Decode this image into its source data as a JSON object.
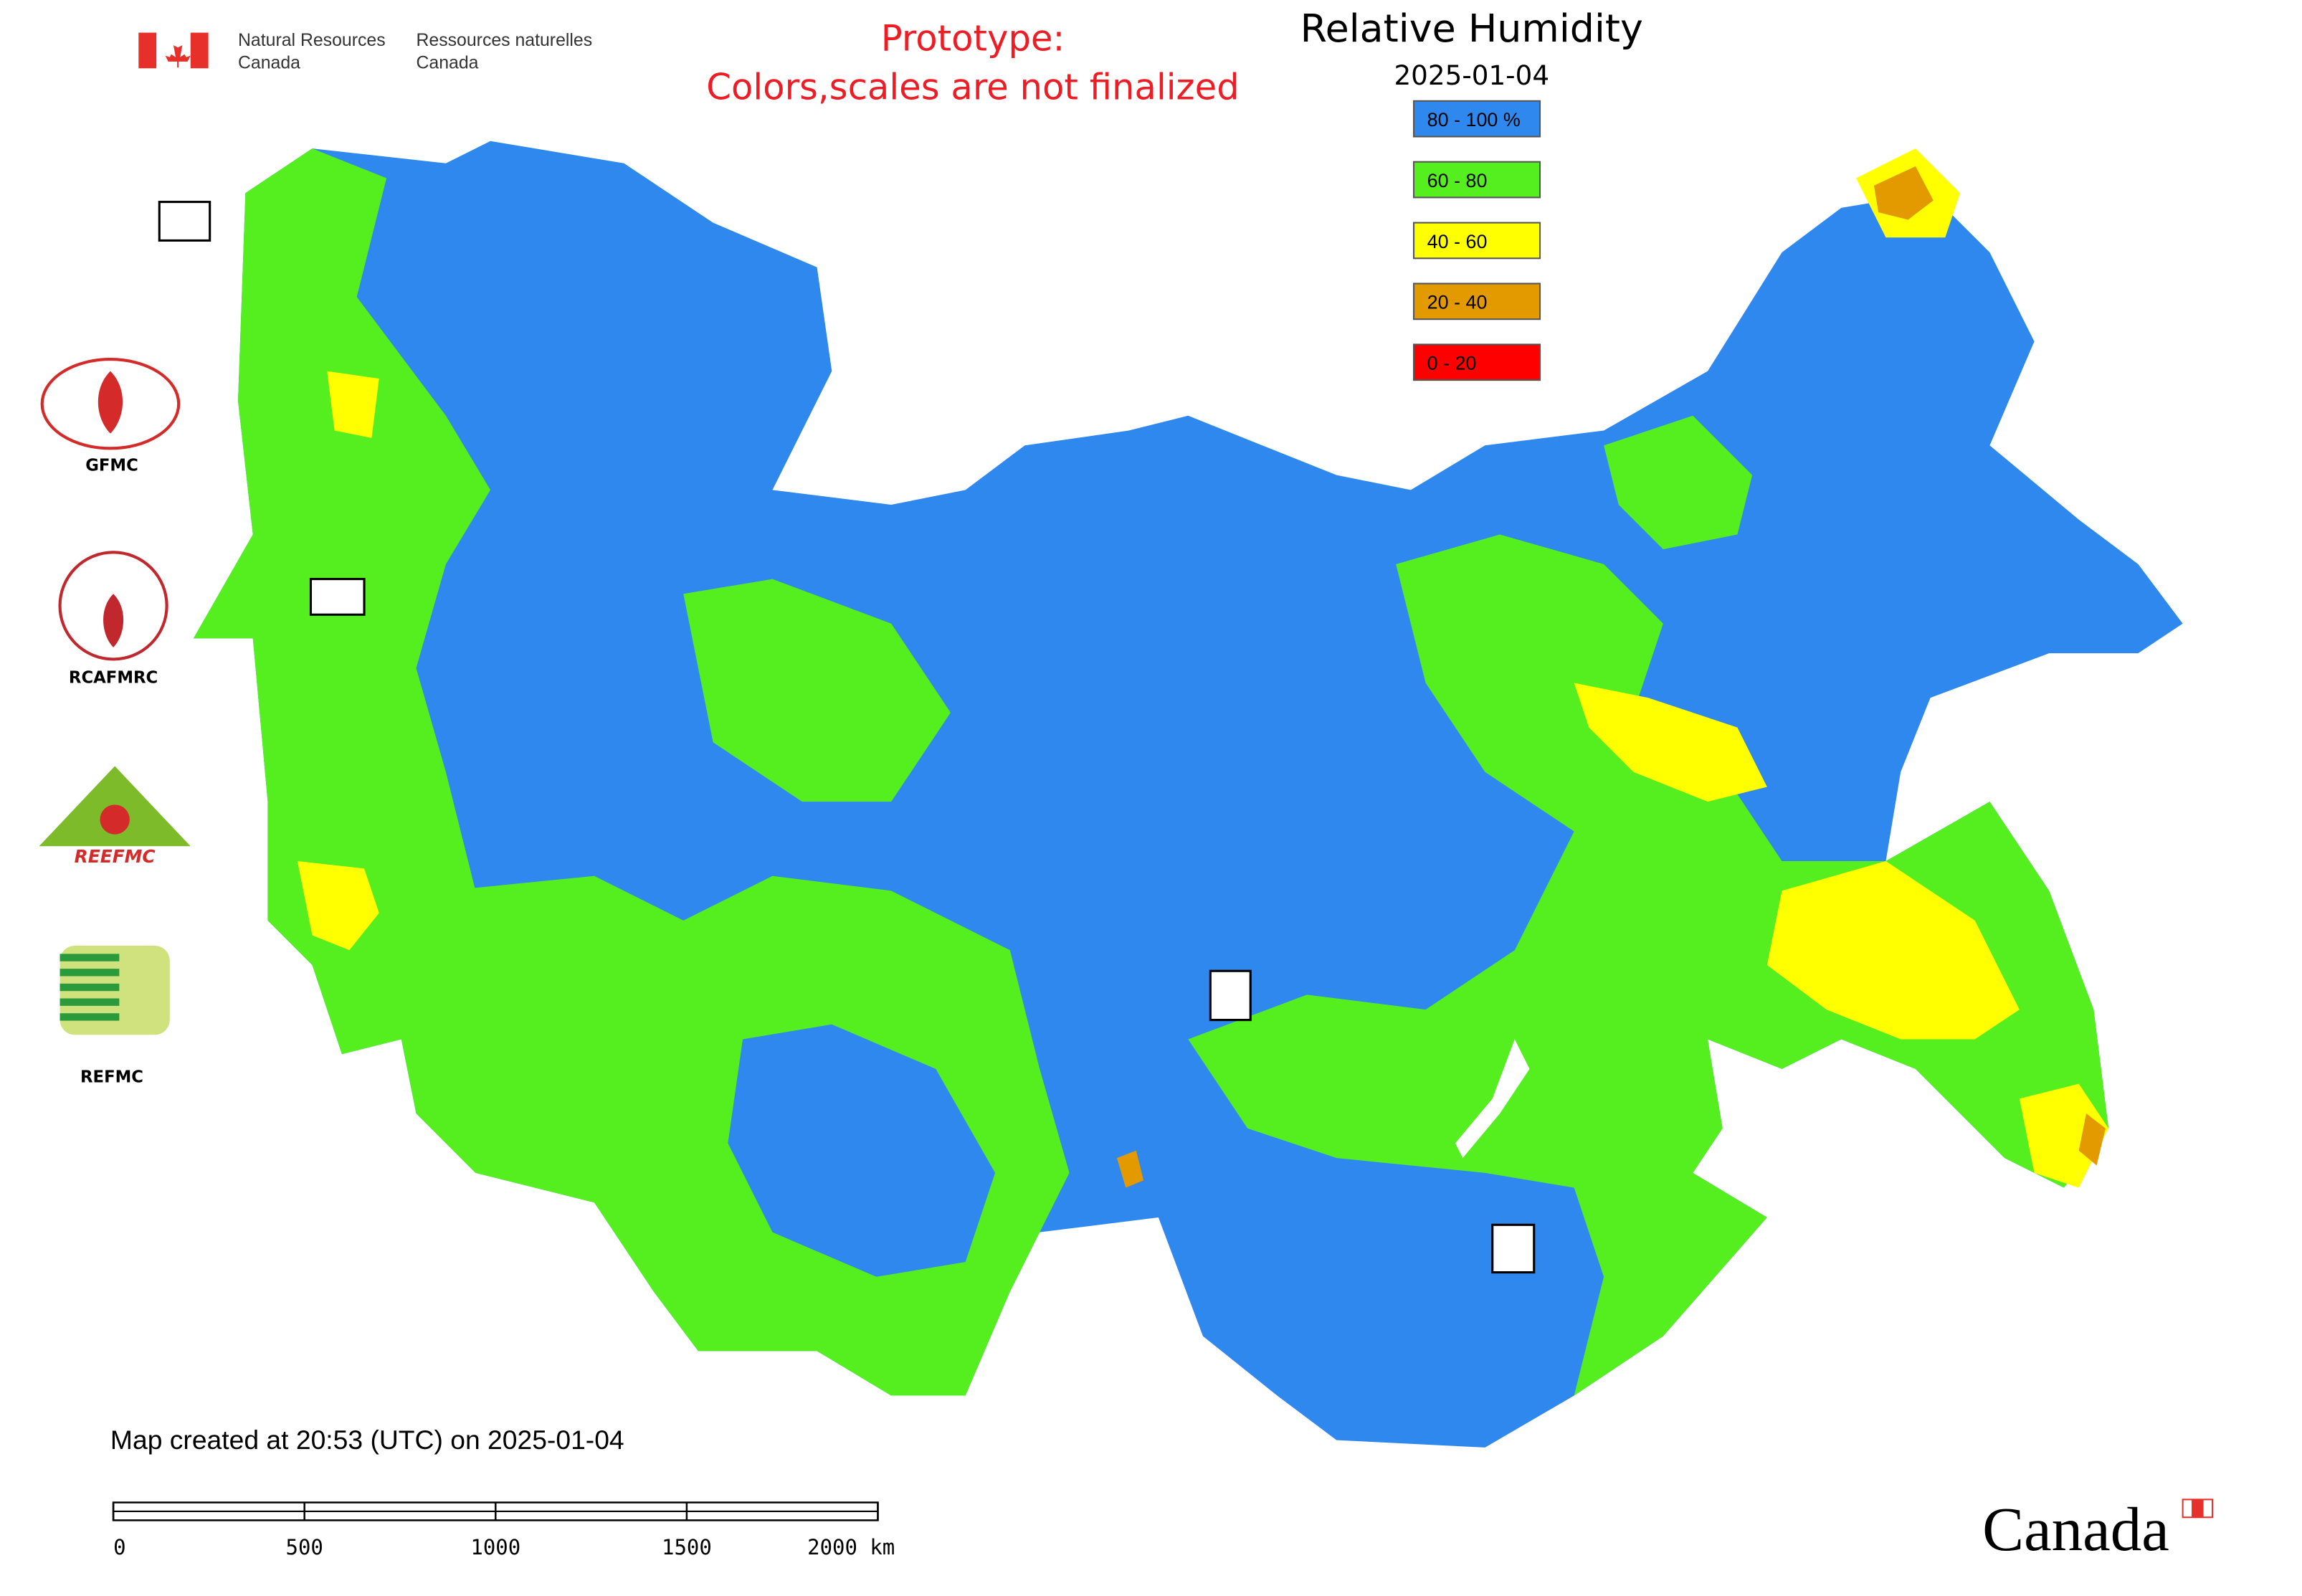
{
  "header": {
    "agency_en": [
      "Natural Resources",
      "Canada"
    ],
    "agency_fr": [
      "Ressources naturelles",
      "Canada"
    ]
  },
  "notice": [
    "Prototype:",
    "Colors,scales are not finalized"
  ],
  "title": "Relative Humidity",
  "date": "2025-01-04",
  "legend": [
    {
      "label": "80 - 100 %",
      "color": "#2f88ee"
    },
    {
      "label": "60 - 80",
      "color": "#55ee1f"
    },
    {
      "label": "40 - 60",
      "color": "#ffff00"
    },
    {
      "label": "20 - 40",
      "color": "#e39a00"
    },
    {
      "label": "0 - 20",
      "color": "#ff0000"
    }
  ],
  "logo_captions": [
    "GFMC",
    "RCAFMRC",
    "REFMC"
  ],
  "reefmc_emblem": "REEFMC",
  "footer": {
    "created": "Map created at 20:53 (UTC) on 2025-01-04",
    "scale_labels": [
      "0",
      "500",
      "1000",
      "1500",
      "2000 km"
    ]
  },
  "wordmark": "Canada"
}
